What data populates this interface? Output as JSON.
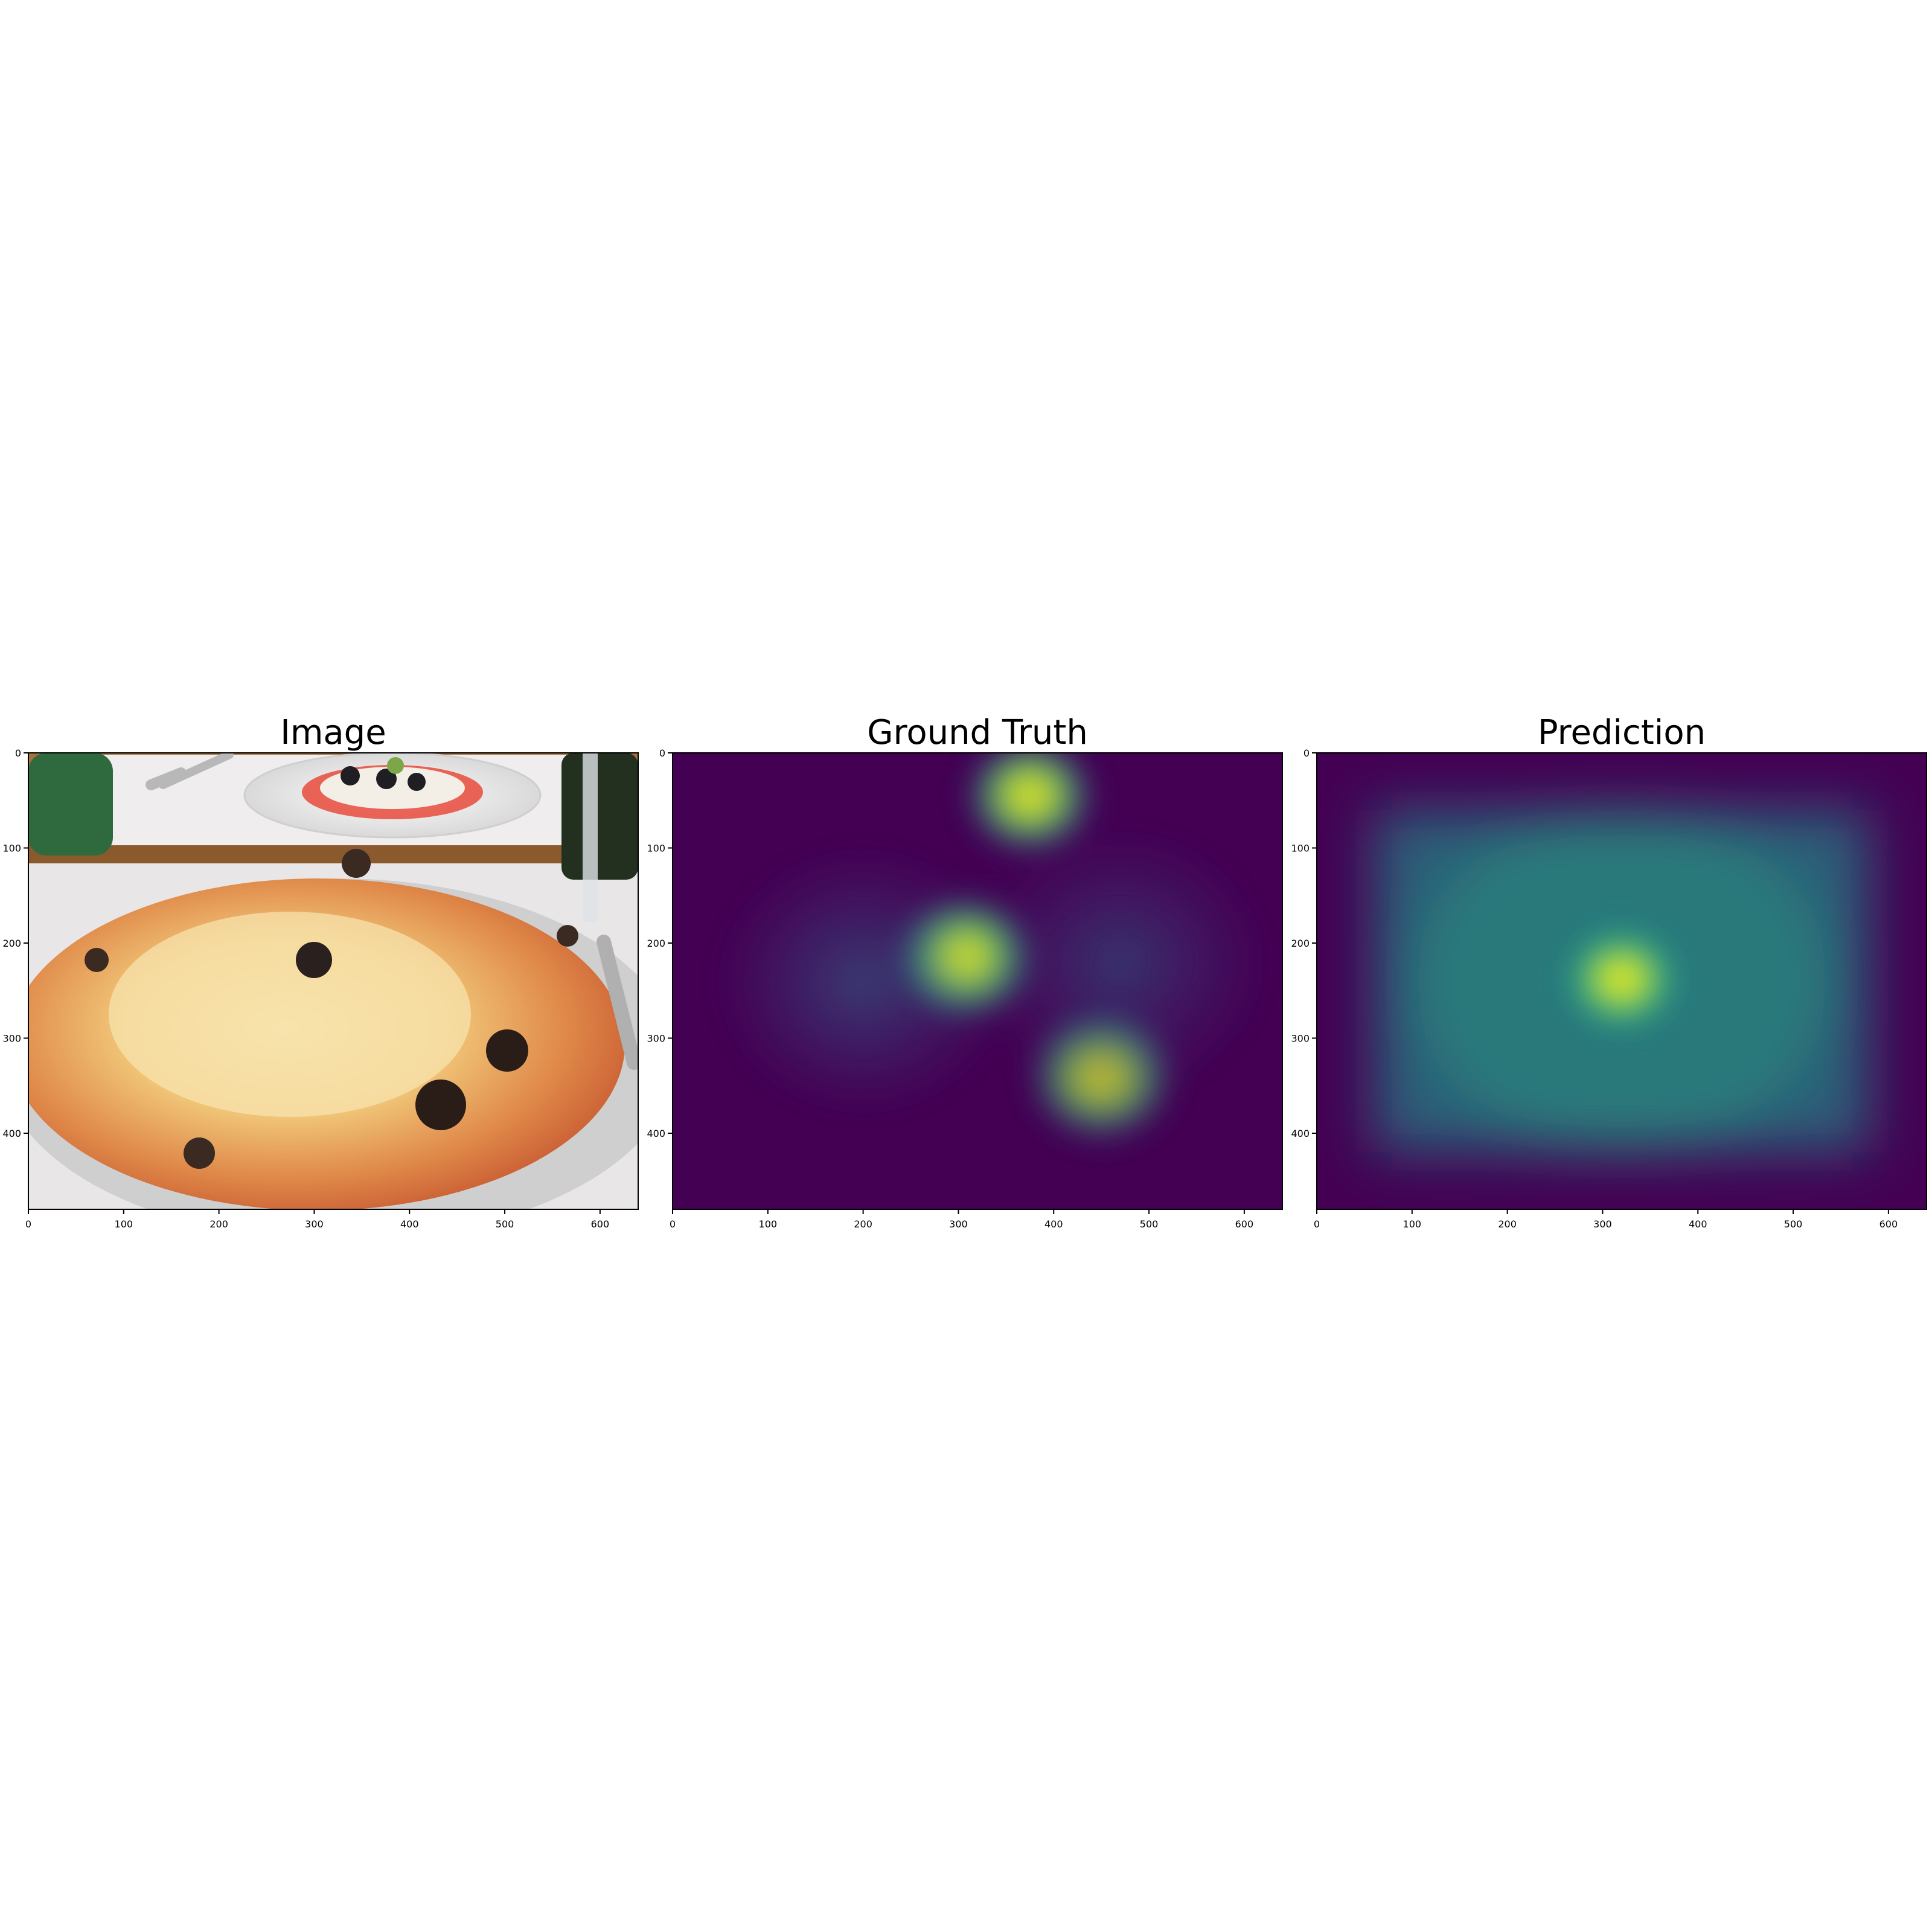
{
  "chart_data": [
    {
      "type": "heatmap",
      "title": "Image",
      "content": "photo",
      "xlim": [
        0,
        640
      ],
      "ylim": [
        480,
        0
      ],
      "x_ticks": [
        0,
        100,
        200,
        300,
        400,
        500,
        600
      ],
      "y_ticks": [
        0,
        100,
        200,
        300,
        400
      ],
      "grid": false
    },
    {
      "type": "heatmap",
      "title": "Ground Truth",
      "colormap": "viridis",
      "xlim": [
        0,
        640
      ],
      "ylim": [
        480,
        0
      ],
      "x_ticks": [
        0,
        100,
        200,
        300,
        400,
        500,
        600
      ],
      "y_ticks": [
        0,
        100,
        200,
        300,
        400
      ],
      "grid": false,
      "hotspots": [
        {
          "x": 375,
          "y": 45,
          "intensity": 0.95,
          "spread": 32
        },
        {
          "x": 307,
          "y": 215,
          "intensity": 1.0,
          "spread": 34
        },
        {
          "x": 450,
          "y": 340,
          "intensity": 0.8,
          "spread": 36
        },
        {
          "x": 200,
          "y": 240,
          "intensity": 0.35,
          "spread": 70
        },
        {
          "x": 470,
          "y": 220,
          "intensity": 0.3,
          "spread": 70
        }
      ]
    },
    {
      "type": "heatmap",
      "title": "Prediction",
      "colormap": "viridis",
      "xlim": [
        0,
        640
      ],
      "ylim": [
        480,
        0
      ],
      "x_ticks": [
        0,
        100,
        200,
        300,
        400,
        500,
        600
      ],
      "y_ticks": [
        0,
        100,
        200,
        300,
        400
      ],
      "grid": false,
      "hotspots": [
        {
          "x": 320,
          "y": 238,
          "intensity": 1.0,
          "spread": 30
        }
      ],
      "background_region": {
        "x_range": [
          60,
          580
        ],
        "y_range": [
          60,
          420
        ],
        "intensity": 0.5
      }
    }
  ]
}
